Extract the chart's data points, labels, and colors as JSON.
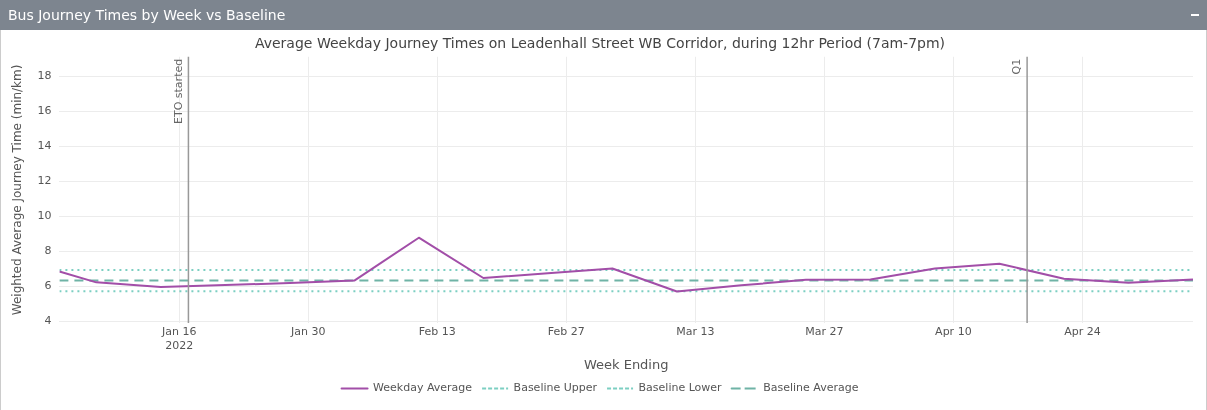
{
  "chart_data": {
    "type": "line",
    "title": "Bus Journey Times by Week vs Baseline",
    "subtitle": "Average Weekday Journey Times on Leadenhall Street WB Corridor, during 12hr Period (7am-7pm)",
    "xlabel": "Week Ending",
    "ylabel": "Weighted Average Journey Time (min/km)",
    "x": [
      "2022-01-03",
      "2022-01-07",
      "2022-01-14",
      "2022-01-21",
      "2022-01-28",
      "2022-02-04",
      "2022-02-11",
      "2022-02-18",
      "2022-02-25",
      "2022-03-04",
      "2022-03-11",
      "2022-03-18",
      "2022-03-25",
      "2022-04-01",
      "2022-04-08",
      "2022-04-15",
      "2022-04-22",
      "2022-04-29",
      "2022-05-06"
    ],
    "series": [
      {
        "name": "Weekday Average",
        "color": "#a24ea8",
        "line_style": "solid",
        "values": [
          6.84,
          6.22,
          5.95,
          6.07,
          6.18,
          6.32,
          8.77,
          6.47,
          6.74,
          7.01,
          5.7,
          6.05,
          6.37,
          6.39,
          7.01,
          7.28,
          6.43,
          6.2,
          6.39
        ]
      },
      {
        "name": "Baseline Upper",
        "color": "#7ccfc2",
        "line_style": "dotted",
        "x": [
          "2022-01-03",
          "2022-05-06"
        ],
        "values": [
          6.93,
          6.93
        ]
      },
      {
        "name": "Baseline Lower",
        "color": "#7ccfc2",
        "line_style": "dotted",
        "x": [
          "2022-01-03",
          "2022-05-06"
        ],
        "values": [
          5.72,
          5.72
        ]
      },
      {
        "name": "Baseline Average",
        "color": "#6fb3a6",
        "line_style": "dashed",
        "x": [
          "2022-01-03",
          "2022-05-06"
        ],
        "values": [
          6.32,
          6.32
        ]
      }
    ],
    "xlim": [
      "2022-01-03",
      "2022-05-06"
    ],
    "xticks": [
      {
        "value": "2022-01-16",
        "label": "Jan 16\n2022"
      },
      {
        "value": "2022-01-30",
        "label": "Jan 30"
      },
      {
        "value": "2022-02-13",
        "label": "Feb 13"
      },
      {
        "value": "2022-02-27",
        "label": "Feb 27"
      },
      {
        "value": "2022-03-13",
        "label": "Mar 13"
      },
      {
        "value": "2022-03-27",
        "label": "Mar 27"
      },
      {
        "value": "2022-04-10",
        "label": "Apr 10"
      },
      {
        "value": "2022-04-24",
        "label": "Apr 24"
      }
    ],
    "ylim": [
      3.9,
      19.1
    ],
    "yticks": [
      4,
      6,
      8,
      10,
      12,
      14,
      16,
      18
    ],
    "ref_lines": [
      {
        "axis": "x",
        "value": "2022-01-17",
        "label": "ETO started",
        "color": "#999999"
      },
      {
        "axis": "x",
        "value": "2022-04-18",
        "label": "Q1",
        "color": "#999999"
      }
    ],
    "grid": true,
    "legend": "bottom",
    "marker": "none"
  }
}
